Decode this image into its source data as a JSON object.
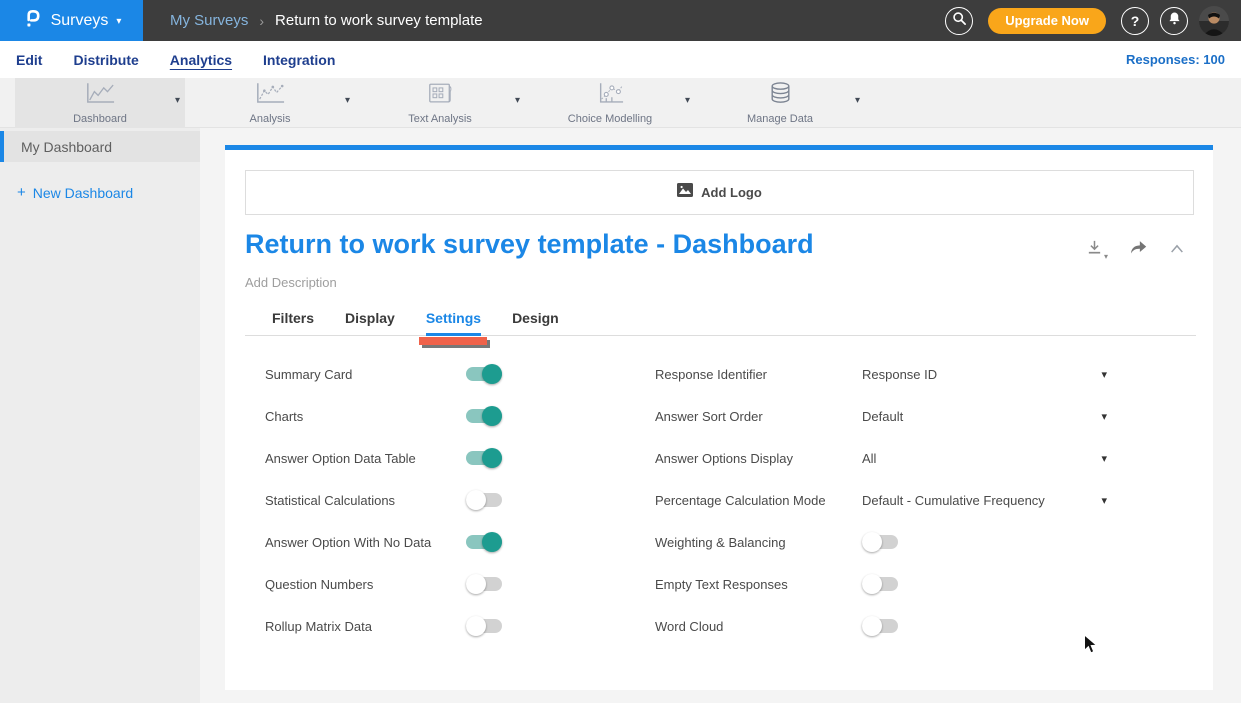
{
  "topbar": {
    "logo": {
      "glyph": "P",
      "product": "Surveys",
      "caret": "▾"
    },
    "breadcrumb": {
      "parent": "My Surveys",
      "separator": "›",
      "current": "Return to work survey template"
    },
    "search_icon": "search-icon",
    "upgrade_button": "Upgrade Now",
    "help_button": "?",
    "bell_icon": "bell-icon",
    "avatar": "user-avatar"
  },
  "nav": {
    "items": [
      {
        "label": "Edit",
        "active": false
      },
      {
        "label": "Distribute",
        "active": false
      },
      {
        "label": "Analytics",
        "active": true
      },
      {
        "label": "Integration",
        "active": false
      }
    ],
    "responses": "Responses: 100"
  },
  "toolbar": {
    "caret": "▾",
    "items": [
      {
        "label": "Dashboard",
        "icon": "dashboard-chart-icon",
        "selected": true
      },
      {
        "label": "Analysis",
        "icon": "analysis-chart-icon",
        "selected": false
      },
      {
        "label": "Text Analysis",
        "icon": "text-analysis-icon",
        "selected": false
      },
      {
        "label": "Choice Modelling",
        "icon": "choice-modelling-icon",
        "selected": false
      },
      {
        "label": "Manage Data",
        "icon": "database-icon",
        "selected": false
      }
    ]
  },
  "sidebar": {
    "items": [
      {
        "label": "My Dashboard",
        "active": true
      }
    ],
    "new_dashboard": {
      "plus": "+",
      "label": "New Dashboard"
    }
  },
  "main": {
    "add_logo": "Add Logo",
    "title": "Return to work survey template - Dashboard",
    "description": "Add Description",
    "title_actions": {
      "download": "download-icon",
      "share": "share-icon",
      "collapse": "chevron-up-icon"
    },
    "tabs": [
      {
        "label": "Filters",
        "active": false
      },
      {
        "label": "Display",
        "active": false
      },
      {
        "label": "Settings",
        "active": true,
        "annotated": true
      },
      {
        "label": "Design",
        "active": false
      }
    ],
    "settings_left": [
      {
        "label": "Summary Card",
        "control": "toggle",
        "on": true
      },
      {
        "label": "Charts",
        "control": "toggle",
        "on": true
      },
      {
        "label": "Answer Option Data Table",
        "control": "toggle",
        "on": true
      },
      {
        "label": "Statistical Calculations",
        "control": "toggle",
        "on": false
      },
      {
        "label": "Answer Option With No Data",
        "control": "toggle",
        "on": true
      },
      {
        "label": "Question Numbers",
        "control": "toggle",
        "on": false
      },
      {
        "label": "Rollup Matrix Data",
        "control": "toggle",
        "on": false
      }
    ],
    "settings_right": [
      {
        "label": "Response Identifier",
        "control": "select",
        "value": "Response ID"
      },
      {
        "label": "Answer Sort Order",
        "control": "select",
        "value": "Default"
      },
      {
        "label": "Answer Options Display",
        "control": "select",
        "value": "All"
      },
      {
        "label": "Percentage Calculation Mode",
        "control": "select",
        "value": "Default - Cumulative Frequency"
      },
      {
        "label": "Weighting & Balancing",
        "control": "toggle",
        "on": false
      },
      {
        "label": "Empty Text Responses",
        "control": "toggle",
        "on": false
      },
      {
        "label": "Word Cloud",
        "control": "toggle",
        "on": false
      }
    ]
  },
  "colors": {
    "brand_blue": "#1b87e6",
    "topbar_dark": "#3d3d3d",
    "upgrade_orange": "#f9a61a",
    "nav_navy": "#1e3e8e",
    "toggle_on_knob": "#1d9c90",
    "toggle_on_track": "#8ac6bf",
    "annotation_red": "#f0624a"
  }
}
